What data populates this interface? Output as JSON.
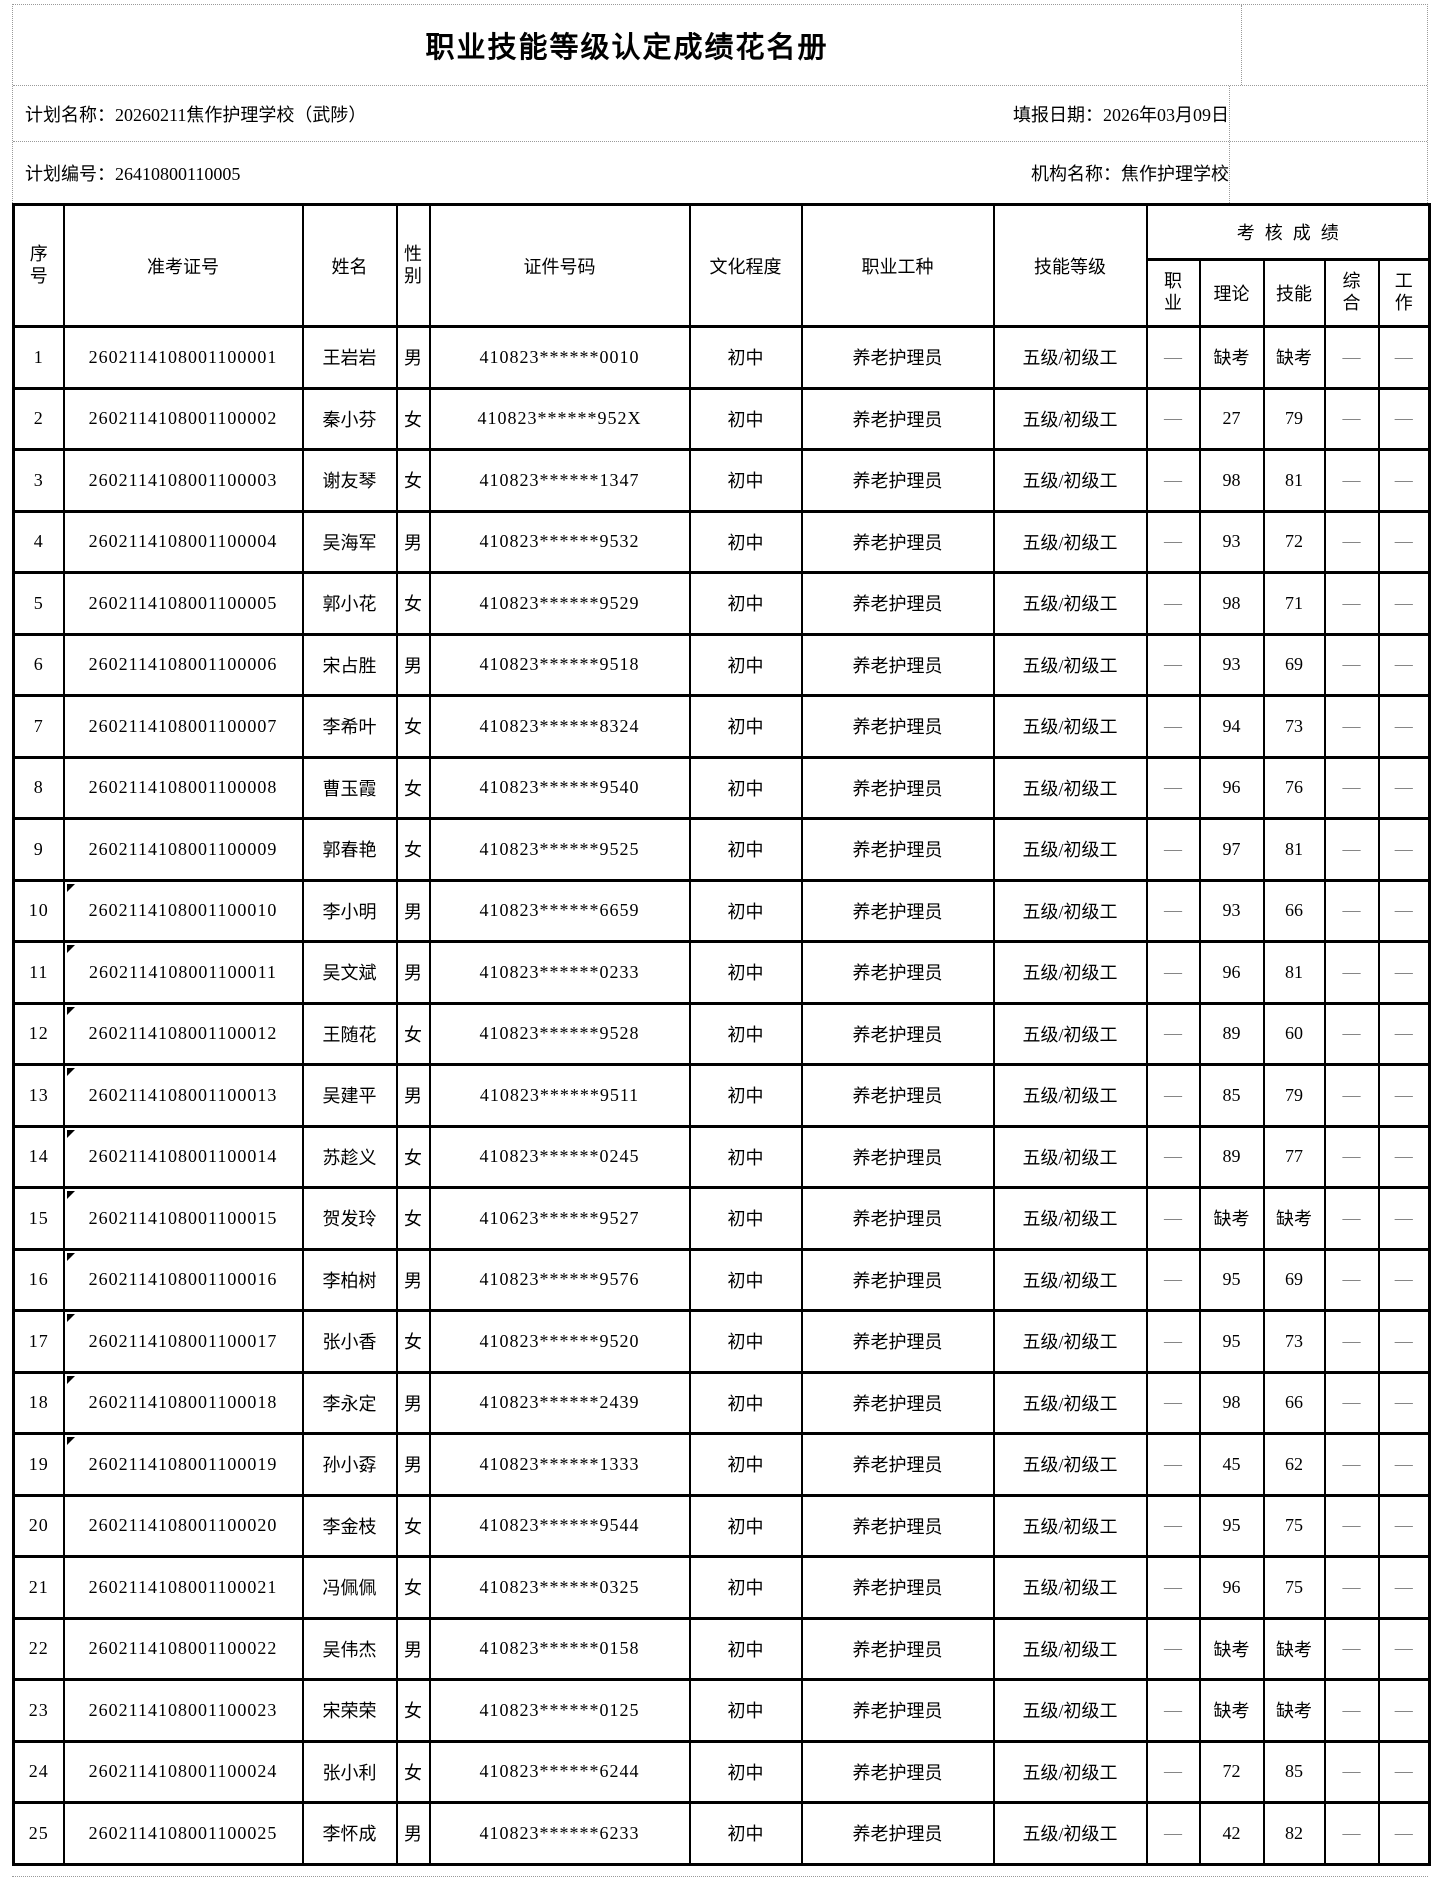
{
  "title": "职业技能等级认定成绩花名册",
  "meta": {
    "plan_name": "计划名称：20260211焦作护理学校（武陟）",
    "report_date": "填报日期：2026年03月09日",
    "plan_code": "计划编号：26410800110005",
    "org_name": "机构名称：焦作护理学校"
  },
  "table": {
    "headers": {
      "no": "序\n号",
      "ticket": "准考证号",
      "name": "姓名",
      "gender": "性\n别",
      "id": "证件号码",
      "edu": "文化程度",
      "occupation": "职业工种",
      "level": "技能等级",
      "score_group": "考核成绩",
      "s1": "职\n业",
      "s2": "理论",
      "s3": "技能",
      "s4": "综\n合",
      "s5": "工\n作"
    },
    "rows": [
      {
        "no": "1",
        "ticket": "2602114108001100001",
        "name": "王岩岩",
        "gender": "男",
        "id": "410823******0010",
        "edu": "初中",
        "occupation": "养老护理员",
        "level": "五级/初级工",
        "s1": "—",
        "s2": "缺考",
        "s3": "缺考",
        "s4": "—",
        "s5": "—",
        "marker": false
      },
      {
        "no": "2",
        "ticket": "2602114108001100002",
        "name": "秦小芬",
        "gender": "女",
        "id": "410823******952X",
        "edu": "初中",
        "occupation": "养老护理员",
        "level": "五级/初级工",
        "s1": "—",
        "s2": "27",
        "s3": "79",
        "s4": "—",
        "s5": "—",
        "marker": false
      },
      {
        "no": "3",
        "ticket": "2602114108001100003",
        "name": "谢友琴",
        "gender": "女",
        "id": "410823******1347",
        "edu": "初中",
        "occupation": "养老护理员",
        "level": "五级/初级工",
        "s1": "—",
        "s2": "98",
        "s3": "81",
        "s4": "—",
        "s5": "—",
        "marker": false
      },
      {
        "no": "4",
        "ticket": "2602114108001100004",
        "name": "吴海军",
        "gender": "男",
        "id": "410823******9532",
        "edu": "初中",
        "occupation": "养老护理员",
        "level": "五级/初级工",
        "s1": "—",
        "s2": "93",
        "s3": "72",
        "s4": "—",
        "s5": "—",
        "marker": false
      },
      {
        "no": "5",
        "ticket": "2602114108001100005",
        "name": "郭小花",
        "gender": "女",
        "id": "410823******9529",
        "edu": "初中",
        "occupation": "养老护理员",
        "level": "五级/初级工",
        "s1": "—",
        "s2": "98",
        "s3": "71",
        "s4": "—",
        "s5": "—",
        "marker": false
      },
      {
        "no": "6",
        "ticket": "2602114108001100006",
        "name": "宋占胜",
        "gender": "男",
        "id": "410823******9518",
        "edu": "初中",
        "occupation": "养老护理员",
        "level": "五级/初级工",
        "s1": "—",
        "s2": "93",
        "s3": "69",
        "s4": "—",
        "s5": "—",
        "marker": false
      },
      {
        "no": "7",
        "ticket": "2602114108001100007",
        "name": "李希叶",
        "gender": "女",
        "id": "410823******8324",
        "edu": "初中",
        "occupation": "养老护理员",
        "level": "五级/初级工",
        "s1": "—",
        "s2": "94",
        "s3": "73",
        "s4": "—",
        "s5": "—",
        "marker": false
      },
      {
        "no": "8",
        "ticket": "2602114108001100008",
        "name": "曹玉霞",
        "gender": "女",
        "id": "410823******9540",
        "edu": "初中",
        "occupation": "养老护理员",
        "level": "五级/初级工",
        "s1": "—",
        "s2": "96",
        "s3": "76",
        "s4": "—",
        "s5": "—",
        "marker": false
      },
      {
        "no": "9",
        "ticket": "2602114108001100009",
        "name": "郭春艳",
        "gender": "女",
        "id": "410823******9525",
        "edu": "初中",
        "occupation": "养老护理员",
        "level": "五级/初级工",
        "s1": "—",
        "s2": "97",
        "s3": "81",
        "s4": "—",
        "s5": "—",
        "marker": false
      },
      {
        "no": "10",
        "ticket": "2602114108001100010",
        "name": "李小明",
        "gender": "男",
        "id": "410823******6659",
        "edu": "初中",
        "occupation": "养老护理员",
        "level": "五级/初级工",
        "s1": "—",
        "s2": "93",
        "s3": "66",
        "s4": "—",
        "s5": "—",
        "marker": true
      },
      {
        "no": "11",
        "ticket": "2602114108001100011",
        "name": "吴文斌",
        "gender": "男",
        "id": "410823******0233",
        "edu": "初中",
        "occupation": "养老护理员",
        "level": "五级/初级工",
        "s1": "—",
        "s2": "96",
        "s3": "81",
        "s4": "—",
        "s5": "—",
        "marker": true
      },
      {
        "no": "12",
        "ticket": "2602114108001100012",
        "name": "王随花",
        "gender": "女",
        "id": "410823******9528",
        "edu": "初中",
        "occupation": "养老护理员",
        "level": "五级/初级工",
        "s1": "—",
        "s2": "89",
        "s3": "60",
        "s4": "—",
        "s5": "—",
        "marker": true
      },
      {
        "no": "13",
        "ticket": "2602114108001100013",
        "name": "吴建平",
        "gender": "男",
        "id": "410823******9511",
        "edu": "初中",
        "occupation": "养老护理员",
        "level": "五级/初级工",
        "s1": "—",
        "s2": "85",
        "s3": "79",
        "s4": "—",
        "s5": "—",
        "marker": true
      },
      {
        "no": "14",
        "ticket": "2602114108001100014",
        "name": "苏趁义",
        "gender": "女",
        "id": "410823******0245",
        "edu": "初中",
        "occupation": "养老护理员",
        "level": "五级/初级工",
        "s1": "—",
        "s2": "89",
        "s3": "77",
        "s4": "—",
        "s5": "—",
        "marker": true
      },
      {
        "no": "15",
        "ticket": "2602114108001100015",
        "name": "贺发玲",
        "gender": "女",
        "id": "410623******9527",
        "edu": "初中",
        "occupation": "养老护理员",
        "level": "五级/初级工",
        "s1": "—",
        "s2": "缺考",
        "s3": "缺考",
        "s4": "—",
        "s5": "—",
        "marker": true
      },
      {
        "no": "16",
        "ticket": "2602114108001100016",
        "name": "李柏树",
        "gender": "男",
        "id": "410823******9576",
        "edu": "初中",
        "occupation": "养老护理员",
        "level": "五级/初级工",
        "s1": "—",
        "s2": "95",
        "s3": "69",
        "s4": "—",
        "s5": "—",
        "marker": true
      },
      {
        "no": "17",
        "ticket": "2602114108001100017",
        "name": "张小香",
        "gender": "女",
        "id": "410823******9520",
        "edu": "初中",
        "occupation": "养老护理员",
        "level": "五级/初级工",
        "s1": "—",
        "s2": "95",
        "s3": "73",
        "s4": "—",
        "s5": "—",
        "marker": true
      },
      {
        "no": "18",
        "ticket": "2602114108001100018",
        "name": "李永定",
        "gender": "男",
        "id": "410823******2439",
        "edu": "初中",
        "occupation": "养老护理员",
        "level": "五级/初级工",
        "s1": "—",
        "s2": "98",
        "s3": "66",
        "s4": "—",
        "s5": "—",
        "marker": true
      },
      {
        "no": "19",
        "ticket": "2602114108001100019",
        "name": "孙小孬",
        "gender": "男",
        "id": "410823******1333",
        "edu": "初中",
        "occupation": "养老护理员",
        "level": "五级/初级工",
        "s1": "—",
        "s2": "45",
        "s3": "62",
        "s4": "—",
        "s5": "—",
        "marker": true
      },
      {
        "no": "20",
        "ticket": "2602114108001100020",
        "name": "李金枝",
        "gender": "女",
        "id": "410823******9544",
        "edu": "初中",
        "occupation": "养老护理员",
        "level": "五级/初级工",
        "s1": "—",
        "s2": "95",
        "s3": "75",
        "s4": "—",
        "s5": "—",
        "marker": false
      },
      {
        "no": "21",
        "ticket": "2602114108001100021",
        "name": "冯佩佩",
        "gender": "女",
        "id": "410823******0325",
        "edu": "初中",
        "occupation": "养老护理员",
        "level": "五级/初级工",
        "s1": "—",
        "s2": "96",
        "s3": "75",
        "s4": "—",
        "s5": "—",
        "marker": false
      },
      {
        "no": "22",
        "ticket": "2602114108001100022",
        "name": "吴伟杰",
        "gender": "男",
        "id": "410823******0158",
        "edu": "初中",
        "occupation": "养老护理员",
        "level": "五级/初级工",
        "s1": "—",
        "s2": "缺考",
        "s3": "缺考",
        "s4": "—",
        "s5": "—",
        "marker": false
      },
      {
        "no": "23",
        "ticket": "2602114108001100023",
        "name": "宋荣荣",
        "gender": "女",
        "id": "410823******0125",
        "edu": "初中",
        "occupation": "养老护理员",
        "level": "五级/初级工",
        "s1": "—",
        "s2": "缺考",
        "s3": "缺考",
        "s4": "—",
        "s5": "—",
        "marker": false
      },
      {
        "no": "24",
        "ticket": "2602114108001100024",
        "name": "张小利",
        "gender": "女",
        "id": "410823******6244",
        "edu": "初中",
        "occupation": "养老护理员",
        "level": "五级/初级工",
        "s1": "—",
        "s2": "72",
        "s3": "85",
        "s4": "—",
        "s5": "—",
        "marker": false
      },
      {
        "no": "25",
        "ticket": "2602114108001100025",
        "name": "李怀成",
        "gender": "男",
        "id": "410823******6233",
        "edu": "初中",
        "occupation": "养老护理员",
        "level": "五级/初级工",
        "s1": "—",
        "s2": "42",
        "s3": "82",
        "s4": "—",
        "s5": "—",
        "marker": false
      }
    ]
  }
}
